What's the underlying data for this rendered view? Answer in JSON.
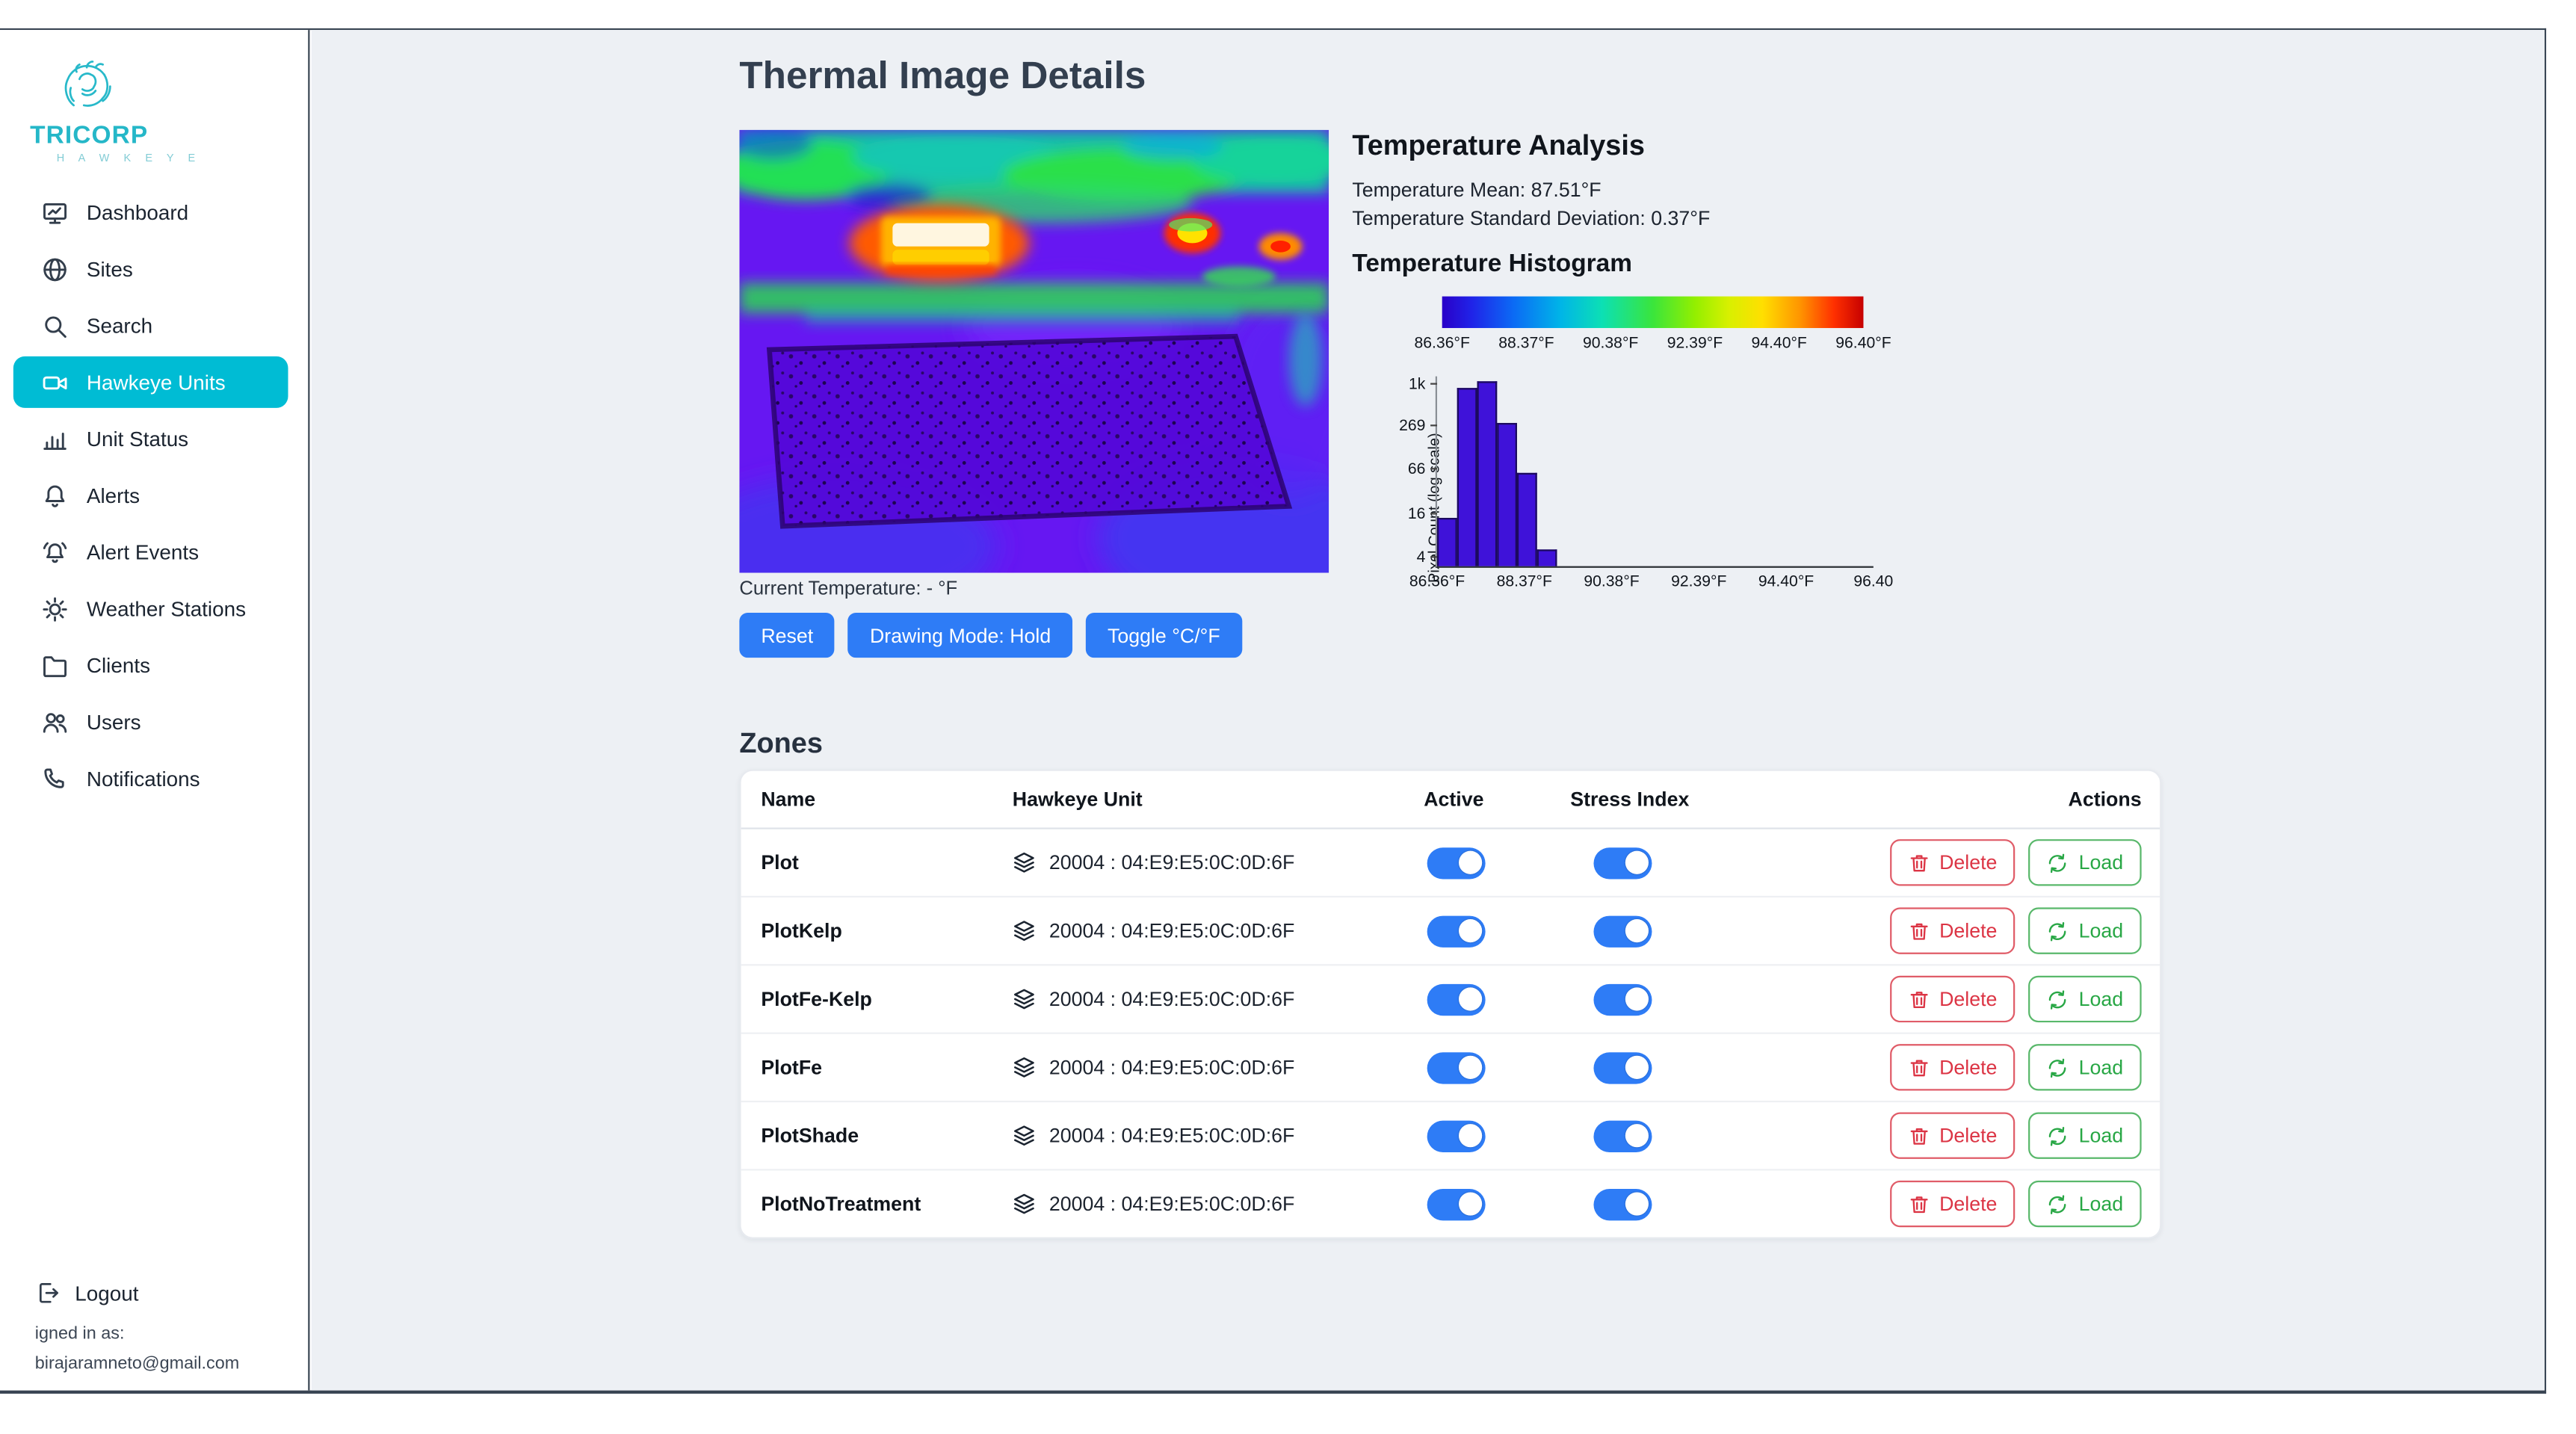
{
  "brand": {
    "name": "TRICORP",
    "subtitle": "H A W K E Y E"
  },
  "colors": {
    "sidebar_active": "#00bcd4",
    "primary_button": "#2e7cf6",
    "toggle_on": "#2e7cf6",
    "delete_red": "#dc3545",
    "load_green": "#28a745",
    "histogram_bar": "#3f12d9",
    "main_background": "#edf0f4"
  },
  "sidebar": {
    "items": [
      {
        "label": "Dashboard",
        "icon": "dashboard-icon",
        "active": false
      },
      {
        "label": "Sites",
        "icon": "globe-icon",
        "active": false
      },
      {
        "label": "Search",
        "icon": "search-icon",
        "active": false
      },
      {
        "label": "Hawkeye Units",
        "icon": "camera-icon",
        "active": true
      },
      {
        "label": "Unit Status",
        "icon": "bar-chart-icon",
        "active": false
      },
      {
        "label": "Alerts",
        "icon": "bell-icon",
        "active": false
      },
      {
        "label": "Alert Events",
        "icon": "bell-ring-icon",
        "active": false
      },
      {
        "label": "Weather Stations",
        "icon": "sun-icon",
        "active": false
      },
      {
        "label": "Clients",
        "icon": "folder-icon",
        "active": false
      },
      {
        "label": "Users",
        "icon": "users-icon",
        "active": false
      },
      {
        "label": "Notifications",
        "icon": "phone-icon",
        "active": false
      }
    ],
    "logout_label": "Logout",
    "signed_in_label": "igned in as:",
    "signed_in_email": "birajaramneto@gmail.com"
  },
  "main": {
    "title": "Thermal Image Details",
    "current_temperature_label": "Current Temperature: - °F",
    "buttons": {
      "reset": "Reset",
      "drawing_mode": "Drawing Mode: Hold",
      "toggle_units": "Toggle °C/°F"
    }
  },
  "analysis": {
    "title": "Temperature Analysis",
    "mean_label": "Temperature Mean: 87.51°F",
    "std_label": "Temperature Standard Deviation: 0.37°F",
    "histogram_title": "Temperature Histogram"
  },
  "chart_data": {
    "type": "bar",
    "title": "Temperature Histogram",
    "ylabel": "Pixel Count (log scale)",
    "y_scale": "log",
    "x_range": [
      86.36,
      96.4
    ],
    "bins": {
      "start": 86.36,
      "width": 0.46
    },
    "values": [
      14,
      900,
      1150,
      300,
      60,
      5
    ],
    "ymax": 1400,
    "y_ticks": [
      {
        "v": 4,
        "label": "4"
      },
      {
        "v": 16,
        "label": "16"
      },
      {
        "v": 66,
        "label": "66"
      },
      {
        "v": 269,
        "label": "269"
      },
      {
        "v": 1000,
        "label": "1k"
      }
    ],
    "x_ticks": [
      "86.36°F",
      "88.37°F",
      "90.38°F",
      "92.39°F",
      "94.40°F",
      "96.40"
    ],
    "colorbar_ticks": [
      "86.36°F",
      "88.37°F",
      "90.38°F",
      "92.39°F",
      "94.40°F",
      "96.40°F"
    ],
    "legend_position": "none",
    "grid": false
  },
  "zones": {
    "title": "Zones",
    "columns": [
      "Name",
      "Hawkeye Unit",
      "Active",
      "Stress Index",
      "Actions"
    ],
    "delete_label": "Delete",
    "load_label": "Load",
    "rows": [
      {
        "name": "Plot",
        "unit": "20004 : 04:E9:E5:0C:0D:6F",
        "active": true,
        "stress_index": true
      },
      {
        "name": "PlotKelp",
        "unit": "20004 : 04:E9:E5:0C:0D:6F",
        "active": true,
        "stress_index": true
      },
      {
        "name": "PlotFe-Kelp",
        "unit": "20004 : 04:E9:E5:0C:0D:6F",
        "active": true,
        "stress_index": true
      },
      {
        "name": "PlotFe",
        "unit": "20004 : 04:E9:E5:0C:0D:6F",
        "active": true,
        "stress_index": true
      },
      {
        "name": "PlotShade",
        "unit": "20004 : 04:E9:E5:0C:0D:6F",
        "active": true,
        "stress_index": true
      },
      {
        "name": "PlotNoTreatment",
        "unit": "20004 : 04:E9:E5:0C:0D:6F",
        "active": true,
        "stress_index": true
      }
    ]
  }
}
